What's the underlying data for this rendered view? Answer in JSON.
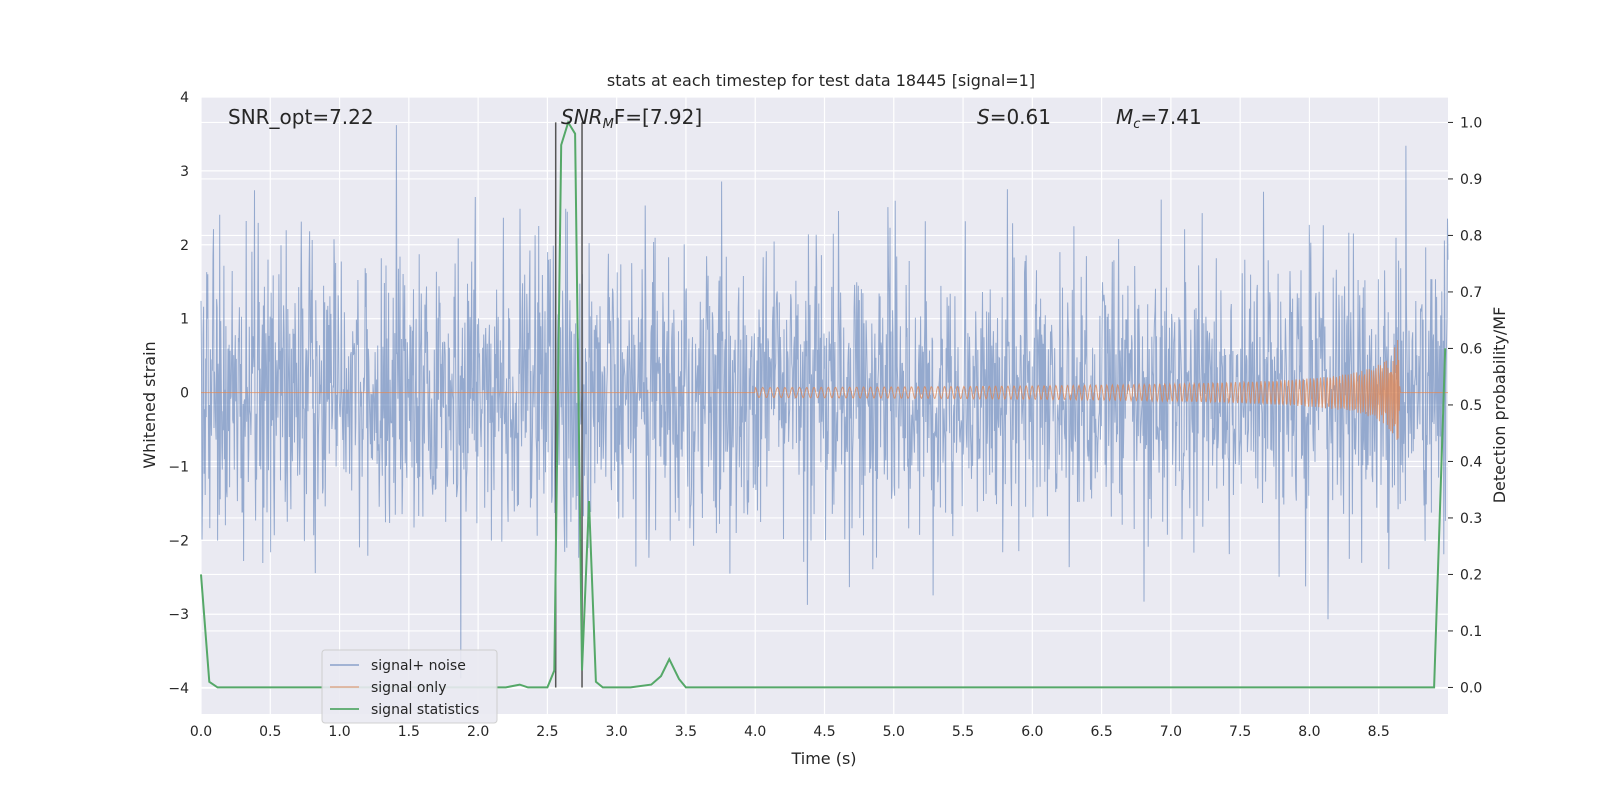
{
  "chart_data": {
    "type": "line",
    "title": "stats at each timestep for test data 18445 [signal=1]",
    "xlabel": "Time (s)",
    "ylabel": "Whitened strain",
    "y2label": "Detection probability/MF",
    "xlim": [
      0.0,
      9.0
    ],
    "ylim": [
      -4.35,
      4.0
    ],
    "y2lim": [
      -0.047,
      1.045
    ],
    "xticks": [
      0.0,
      0.5,
      1.0,
      1.5,
      2.0,
      2.5,
      3.0,
      3.5,
      4.0,
      4.5,
      5.0,
      5.5,
      6.0,
      6.5,
      7.0,
      7.5,
      8.0,
      8.5
    ],
    "xtick_labels": [
      "0.0",
      "0.5",
      "1.0",
      "1.5",
      "2.0",
      "2.5",
      "3.0",
      "3.5",
      "4.0",
      "4.5",
      "5.0",
      "5.5",
      "6.0",
      "6.5",
      "7.0",
      "7.5",
      "8.0",
      "8.5"
    ],
    "yticks": [
      4,
      3,
      2,
      1,
      0,
      -1,
      -2,
      -3,
      -4
    ],
    "ytick_labels": [
      "4",
      "3",
      "2",
      "1",
      "0",
      "−1",
      "−2",
      "−3",
      "−4"
    ],
    "y2ticks": [
      1.0,
      0.9,
      0.8,
      0.7,
      0.6,
      0.5,
      0.4,
      0.3,
      0.2,
      0.1,
      0.0
    ],
    "y2tick_labels": [
      "1.0",
      "0.9",
      "0.8",
      "0.7",
      "0.6",
      "0.5",
      "0.4",
      "0.3",
      "0.2",
      "0.1",
      "0.0"
    ],
    "grid": true,
    "legend_position": "lower-left",
    "annotations": {
      "snr_opt": "SNR_opt=7.22",
      "snr_mf_label": "SNR",
      "snr_mf_sub": "M",
      "snr_mf_suffix": "F=[7.92]",
      "s_label": "S",
      "s_value": "=0.61",
      "mc_label": "M",
      "mc_sub": "c",
      "mc_value": "=7.41"
    },
    "vlines": [
      2.56,
      2.75
    ],
    "series": [
      {
        "name": "signal+ noise",
        "color": "#4c72b0",
        "description_values": {
          "core_amplitude": 1.35,
          "spike_max": 3.62,
          "spike_min": -4.0
        }
      },
      {
        "name": "signal only",
        "color": "#dd8452",
        "chirp_start_x": 4.0,
        "chirp_end_x": 8.66,
        "chirp_peak_amplitude": 0.93
      },
      {
        "name": "signal statistics",
        "color": "#55a868",
        "axis": "right",
        "x": [
          0.0,
          0.06,
          0.12,
          0.2,
          0.5,
          1.0,
          1.5,
          2.0,
          2.2,
          2.3,
          2.36,
          2.42,
          2.5,
          2.55,
          2.6,
          2.65,
          2.7,
          2.75,
          2.8,
          2.85,
          2.9,
          3.0,
          3.1,
          3.25,
          3.32,
          3.38,
          3.45,
          3.5,
          4.0,
          5.0,
          6.0,
          7.0,
          8.0,
          8.9,
          8.94,
          8.98
        ],
        "values": [
          0.2,
          0.01,
          0.0,
          0.0,
          0.0,
          0.0,
          0.0,
          0.0,
          0.0,
          0.005,
          0.0,
          0.0,
          0.0,
          0.03,
          0.96,
          1.0,
          0.98,
          0.03,
          0.33,
          0.01,
          0.0,
          0.0,
          0.0,
          0.005,
          0.02,
          0.05,
          0.015,
          0.0,
          0.0,
          0.0,
          0.0,
          0.0,
          0.0,
          0.0,
          0.3,
          0.6
        ]
      }
    ]
  }
}
